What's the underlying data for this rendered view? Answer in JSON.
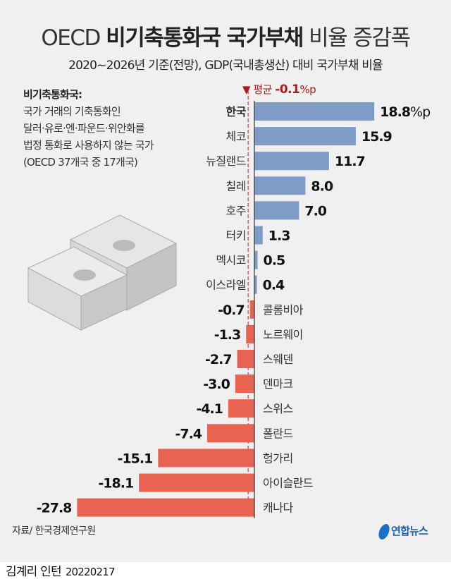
{
  "header": {
    "title_prefix": "OECD",
    "title_bold": "비기축통화국 국가부채",
    "title_suffix": "비율 증감폭",
    "subtitle": "2020~2026년 기준(전망), GDP(국내총생산) 대비 국가부채 비율"
  },
  "note": {
    "heading": "비기축통화국:",
    "lines": [
      "국가 거래의 기축통화인",
      "달러·유로·엔·파운드·위안화를",
      "법정 통화로 사용하지 않는 국가",
      "(OECD 37개국 중 17개국)"
    ]
  },
  "chart_data": {
    "type": "bar",
    "orientation": "horizontal",
    "unit": "%p",
    "categories": [
      "한국",
      "체코",
      "뉴질랜드",
      "칠레",
      "호주",
      "터키",
      "멕시코",
      "이스라엘",
      "콜롬비아",
      "노르웨이",
      "스웨덴",
      "덴마크",
      "스위스",
      "폴란드",
      "헝가리",
      "아이슬란드",
      "캐나다"
    ],
    "values": [
      18.8,
      15.9,
      11.7,
      8.0,
      7.0,
      1.3,
      0.5,
      0.4,
      -0.7,
      -1.3,
      -2.7,
      -3.0,
      -4.1,
      -7.4,
      -15.1,
      -18.1,
      -27.8
    ],
    "value_labels": [
      "18.8",
      "15.9",
      "11.7",
      "8.0",
      "7.0",
      "1.3",
      "0.5",
      "0.4",
      "-0.7",
      "-1.3",
      "-2.7",
      "-3.0",
      "-4.1",
      "-7.4",
      "-15.1",
      "-18.1",
      "-27.8"
    ],
    "highlight": "한국",
    "average": {
      "label": "평균",
      "value_label": "-0.1",
      "unit": "%p",
      "value": -0.1
    },
    "colors": {
      "positive": "#7f9cc7",
      "negative": "#e86352",
      "average": "#b01c1c"
    }
  },
  "footer": {
    "source": "자료/ 한국경제연구원",
    "logo": "연합뉴스",
    "author": "김계리 인턴",
    "date": "20220217"
  }
}
